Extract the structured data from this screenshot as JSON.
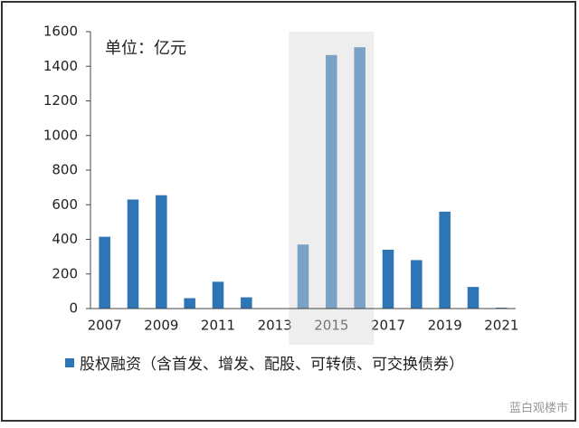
{
  "chart_data": {
    "type": "bar",
    "annotation": "单位：亿元",
    "categories": [
      "2007",
      null,
      "2009",
      null,
      "2011",
      null,
      "2013",
      null,
      "2015",
      null,
      "2017",
      null,
      "2019",
      null,
      "2021"
    ],
    "series": [
      {
        "name": "股权融资（含首发、增发、配股、可转债、可交换债券）",
        "color": "#2e75b6",
        "values": [
          415,
          630,
          655,
          60,
          155,
          65,
          0,
          370,
          1465,
          1510,
          340,
          280,
          560,
          125,
          5
        ]
      }
    ],
    "ylim": [
      0,
      1600
    ],
    "yticks": [
      0,
      200,
      400,
      600,
      800,
      1000,
      1200,
      1400,
      1600
    ],
    "shaded_categories": [
      7,
      9
    ],
    "shade_color": "#d9d9d9"
  },
  "watermark": "蓝白观楼市"
}
